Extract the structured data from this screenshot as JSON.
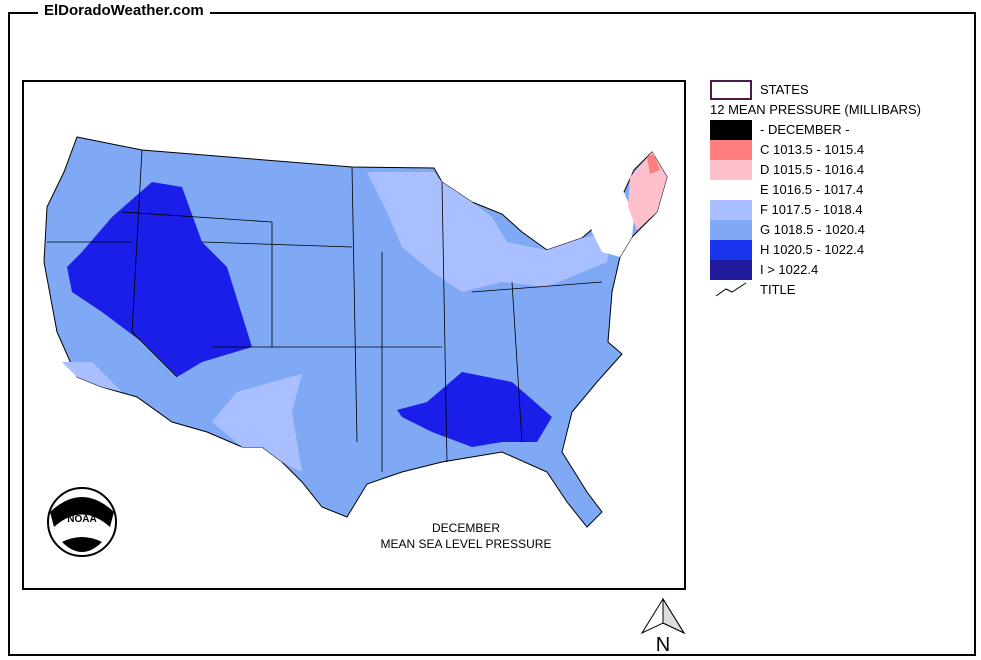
{
  "site_title": "ElDoradoWeather.com",
  "legend": {
    "states_label": "STATES",
    "layer_title": "12 MEAN PRESSURE (MILLIBARS)",
    "items": [
      {
        "label": "- DECEMBER -",
        "color": "#000000"
      },
      {
        "label": "C 1013.5 - 1015.4",
        "color": "#ff7f7f"
      },
      {
        "label": "D 1015.5 - 1016.4",
        "color": "#ffbfcb"
      },
      {
        "label": "E 1016.5 - 1017.4",
        "color": "#ffffff"
      },
      {
        "label": "F 1017.5 - 1018.4",
        "color": "#aabfff"
      },
      {
        "label": "G 1018.5 - 1020.4",
        "color": "#7fa8f5"
      },
      {
        "label": "H 1020.5 - 1022.4",
        "color": "#1a35f0"
      },
      {
        "label": "I > 1022.4",
        "color": "#1f1a9e"
      }
    ],
    "title_label": "TITLE"
  },
  "map": {
    "title_line1": "DECEMBER",
    "title_line2": "MEAN SEA LEVEL PRESSURE",
    "logo_text": "NOAA",
    "north_label": "N"
  }
}
